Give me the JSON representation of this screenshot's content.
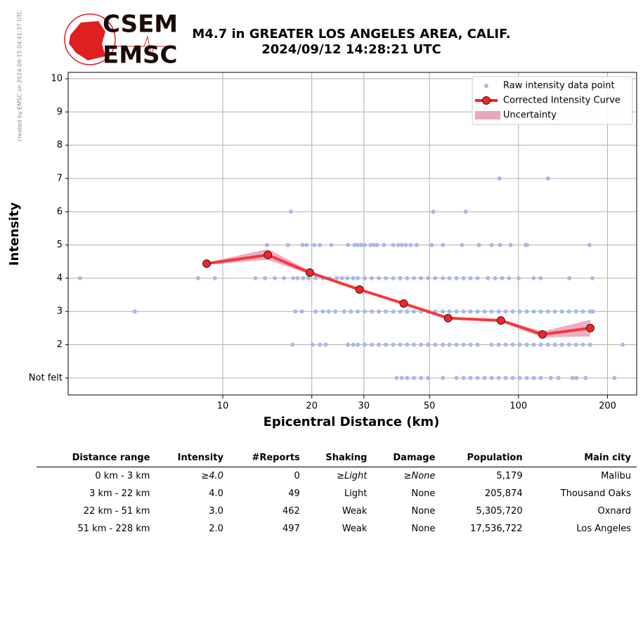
{
  "credit": "created by EMSC on 2024-09-15 04:41:37 UTC",
  "logo": {
    "top": "CSEM",
    "bottom": "EMSC"
  },
  "chart_data": {
    "type": "line",
    "title": "M4.7 in GREATER LOS ANGELES AREA, CALIF.",
    "subtitle": "2024/09/12 14:28:21 UTC",
    "x_label": "Epicentral Distance (km)",
    "y_label": "Intensity",
    "x_scale": "log",
    "xlim": [
      3,
      251
    ],
    "xticks": [
      10,
      20,
      30,
      50,
      100,
      200
    ],
    "ylim": [
      0.49,
      10.19
    ],
    "yticks": [
      {
        "value": 1,
        "label": "Not felt"
      },
      2,
      3,
      4,
      5,
      6,
      7,
      8,
      9,
      10
    ],
    "grid": true,
    "legend": "upper right",
    "series": [
      {
        "type": "scatter",
        "name": "Raw intensity data point",
        "color": "#aab8e8",
        "points": [
          [
            86.2,
            7
          ],
          [
            125.9,
            7
          ],
          [
            17.0,
            6
          ],
          [
            51.5,
            6
          ],
          [
            66.3,
            6
          ],
          [
            14.1,
            5
          ],
          [
            16.6,
            5
          ],
          [
            18.6,
            5
          ],
          [
            19.2,
            5
          ],
          [
            20.4,
            5
          ],
          [
            21.3,
            5
          ],
          [
            23.3,
            5
          ],
          [
            26.5,
            5
          ],
          [
            27.9,
            5
          ],
          [
            28.6,
            5
          ],
          [
            29.4,
            5
          ],
          [
            30.2,
            5
          ],
          [
            31.6,
            5
          ],
          [
            32.5,
            5
          ],
          [
            33.2,
            5
          ],
          [
            35.1,
            5
          ],
          [
            37.7,
            5
          ],
          [
            39.2,
            5
          ],
          [
            40.3,
            5
          ],
          [
            41.6,
            5
          ],
          [
            43.2,
            5
          ],
          [
            45.2,
            5
          ],
          [
            50.9,
            5
          ],
          [
            55.5,
            5
          ],
          [
            64.4,
            5
          ],
          [
            73.5,
            5
          ],
          [
            81.1,
            5
          ],
          [
            86.7,
            5
          ],
          [
            94.1,
            5
          ],
          [
            105.7,
            5
          ],
          [
            106.8,
            5
          ],
          [
            173.8,
            5
          ],
          [
            3.29,
            4
          ],
          [
            8.25,
            4
          ],
          [
            9.4,
            4
          ],
          [
            12.9,
            4
          ],
          [
            13.9,
            4
          ],
          [
            15.0,
            4
          ],
          [
            16.1,
            4
          ],
          [
            17.3,
            4
          ],
          [
            17.9,
            4
          ],
          [
            18.7,
            4
          ],
          [
            19.5,
            4
          ],
          [
            20.6,
            4
          ],
          [
            21.8,
            4
          ],
          [
            23.0,
            4
          ],
          [
            24.3,
            4
          ],
          [
            25.3,
            4
          ],
          [
            26.4,
            4
          ],
          [
            27.6,
            4
          ],
          [
            28.6,
            4
          ],
          [
            30.2,
            4
          ],
          [
            31.9,
            4
          ],
          [
            33.7,
            4
          ],
          [
            35.6,
            4
          ],
          [
            37.7,
            4
          ],
          [
            39.8,
            4
          ],
          [
            42.0,
            4
          ],
          [
            44.3,
            4
          ],
          [
            46.8,
            4
          ],
          [
            49.5,
            4
          ],
          [
            52.3,
            4
          ],
          [
            55.5,
            4
          ],
          [
            58.4,
            4
          ],
          [
            61.7,
            4
          ],
          [
            65.2,
            4
          ],
          [
            68.8,
            4
          ],
          [
            72.7,
            4
          ],
          [
            78.8,
            4
          ],
          [
            83.3,
            4
          ],
          [
            88.0,
            4
          ],
          [
            92.9,
            4
          ],
          [
            100,
            4
          ],
          [
            112.5,
            4
          ],
          [
            118.8,
            4
          ],
          [
            148.6,
            4
          ],
          [
            177.8,
            4
          ],
          [
            5.04,
            3
          ],
          [
            17.6,
            3
          ],
          [
            18.5,
            3
          ],
          [
            20.6,
            3
          ],
          [
            21.8,
            3
          ],
          [
            22.8,
            3
          ],
          [
            24.0,
            3
          ],
          [
            25.7,
            3
          ],
          [
            27.1,
            3
          ],
          [
            28.6,
            3
          ],
          [
            30.2,
            3
          ],
          [
            31.9,
            3
          ],
          [
            33.7,
            3
          ],
          [
            35.6,
            3
          ],
          [
            37.7,
            3
          ],
          [
            39.8,
            3
          ],
          [
            42.0,
            3
          ],
          [
            44.3,
            3
          ],
          [
            46.8,
            3
          ],
          [
            49.5,
            3
          ],
          [
            52.3,
            3
          ],
          [
            55.5,
            3
          ],
          [
            58.4,
            3
          ],
          [
            61.7,
            3
          ],
          [
            65.2,
            3
          ],
          [
            68.8,
            3
          ],
          [
            72.7,
            3
          ],
          [
            76.8,
            3
          ],
          [
            81.1,
            3
          ],
          [
            85.7,
            3
          ],
          [
            90.5,
            3
          ],
          [
            95.6,
            3
          ],
          [
            101,
            3
          ],
          [
            106.7,
            3
          ],
          [
            112.7,
            3
          ],
          [
            119,
            3
          ],
          [
            125.7,
            3
          ],
          [
            132.8,
            3
          ],
          [
            140.2,
            3
          ],
          [
            148.1,
            3
          ],
          [
            156.5,
            3
          ],
          [
            165.3,
            3
          ],
          [
            174.6,
            3
          ],
          [
            178.5,
            3
          ],
          [
            17.2,
            2
          ],
          [
            20.1,
            2
          ],
          [
            21.3,
            2
          ],
          [
            22.3,
            2
          ],
          [
            26.5,
            2
          ],
          [
            27.6,
            2
          ],
          [
            28.6,
            2
          ],
          [
            30.2,
            2
          ],
          [
            31.9,
            2
          ],
          [
            33.7,
            2
          ],
          [
            35.6,
            2
          ],
          [
            37.7,
            2
          ],
          [
            39.8,
            2
          ],
          [
            42.0,
            2
          ],
          [
            44.3,
            2
          ],
          [
            46.8,
            2
          ],
          [
            49.5,
            2
          ],
          [
            52.3,
            2
          ],
          [
            55.5,
            2
          ],
          [
            58.4,
            2
          ],
          [
            61.7,
            2
          ],
          [
            65.2,
            2
          ],
          [
            68.8,
            2
          ],
          [
            72.7,
            2
          ],
          [
            81.1,
            2
          ],
          [
            85.7,
            2
          ],
          [
            90.5,
            2
          ],
          [
            95.6,
            2
          ],
          [
            101,
            2
          ],
          [
            106.7,
            2
          ],
          [
            112.7,
            2
          ],
          [
            119,
            2
          ],
          [
            125.7,
            2
          ],
          [
            132.8,
            2
          ],
          [
            140.2,
            2
          ],
          [
            148.1,
            2
          ],
          [
            156.5,
            2
          ],
          [
            165.3,
            2
          ],
          [
            174.6,
            2
          ],
          [
            225,
            2
          ],
          [
            38.7,
            1
          ],
          [
            40.3,
            1
          ],
          [
            42.0,
            1
          ],
          [
            44.3,
            1
          ],
          [
            46.8,
            1
          ],
          [
            49.5,
            1
          ],
          [
            55.5,
            1
          ],
          [
            61.7,
            1
          ],
          [
            65.2,
            1
          ],
          [
            68.8,
            1
          ],
          [
            72.7,
            1
          ],
          [
            76.8,
            1
          ],
          [
            81.1,
            1
          ],
          [
            85.7,
            1
          ],
          [
            90.5,
            1
          ],
          [
            95.6,
            1
          ],
          [
            101,
            1
          ],
          [
            106.7,
            1
          ],
          [
            112.7,
            1
          ],
          [
            119,
            1
          ],
          [
            128.6,
            1
          ],
          [
            136.5,
            1
          ],
          [
            152.4,
            1
          ],
          [
            157,
            1
          ],
          [
            168.4,
            1
          ],
          [
            211,
            1
          ]
        ]
      },
      {
        "type": "line",
        "name": "Corrected Intensity Curve",
        "color": "#ff2020",
        "x": [
          8.82,
          14.2,
          19.7,
          29.0,
          40.9,
          57.8,
          87.2,
          120.5,
          174.9
        ],
        "values": [
          4.44,
          4.7,
          4.17,
          3.66,
          3.24,
          2.8,
          2.73,
          2.31,
          2.5
        ]
      },
      {
        "type": "area",
        "name": "Uncertainty",
        "color": "#e8a6c0",
        "x": [
          8.82,
          14.2,
          19.7,
          29.0,
          40.9,
          57.8,
          87.2,
          120.5,
          174.9
        ],
        "upper": [
          4.47,
          4.88,
          4.22,
          3.7,
          3.28,
          2.84,
          2.77,
          2.4,
          2.75
        ],
        "lower": [
          4.41,
          4.55,
          4.12,
          3.62,
          3.2,
          2.76,
          2.69,
          2.22,
          2.25
        ]
      }
    ]
  },
  "table": {
    "columns": [
      "Distance range",
      "Intensity",
      "#Reports",
      "Shaking",
      "Damage",
      "Population",
      "Main city"
    ],
    "rows": [
      [
        "0 km - 3 km",
        "≥4.0",
        "0",
        "≥Light",
        "≥None",
        "5,179",
        "Malibu"
      ],
      [
        "3 km - 22 km",
        "4.0",
        "49",
        "Light",
        "None",
        "205,874",
        "Thousand Oaks"
      ],
      [
        "22 km - 51 km",
        "3.0",
        "462",
        "Weak",
        "None",
        "5,305,720",
        "Oxnard"
      ],
      [
        "51 km - 228 km",
        "2.0",
        "497",
        "Weak",
        "None",
        "17,536,722",
        "Los Angeles"
      ]
    ]
  }
}
